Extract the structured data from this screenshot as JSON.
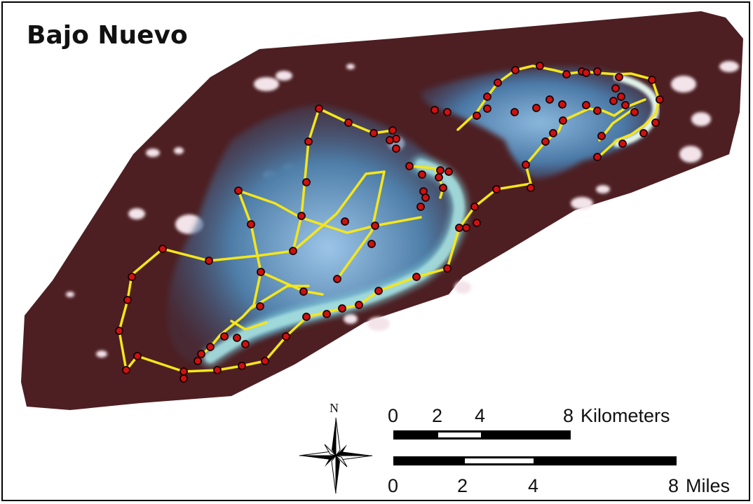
{
  "map": {
    "title": "Bajo Nuevo",
    "colors": {
      "background_satellite": "#4d1f22",
      "reef_lagoon": "#5f8fb8",
      "reef_crest": "#bfe6e0",
      "track": "#f5e61a",
      "sample_point": "#d01010",
      "cloud": "#f4e6ea"
    },
    "layers": {
      "transect_lines": "yellow",
      "survey_sites": "red circles"
    }
  },
  "north_arrow": {
    "label": "N",
    "icon": "compass-rose-icon"
  },
  "scale_bar_km": {
    "ticks": [
      "0",
      "2",
      "4",
      "8"
    ],
    "unit": "Kilometers"
  },
  "scale_bar_miles": {
    "ticks": [
      "0",
      "2",
      "4",
      "8"
    ],
    "unit": "Miles"
  }
}
